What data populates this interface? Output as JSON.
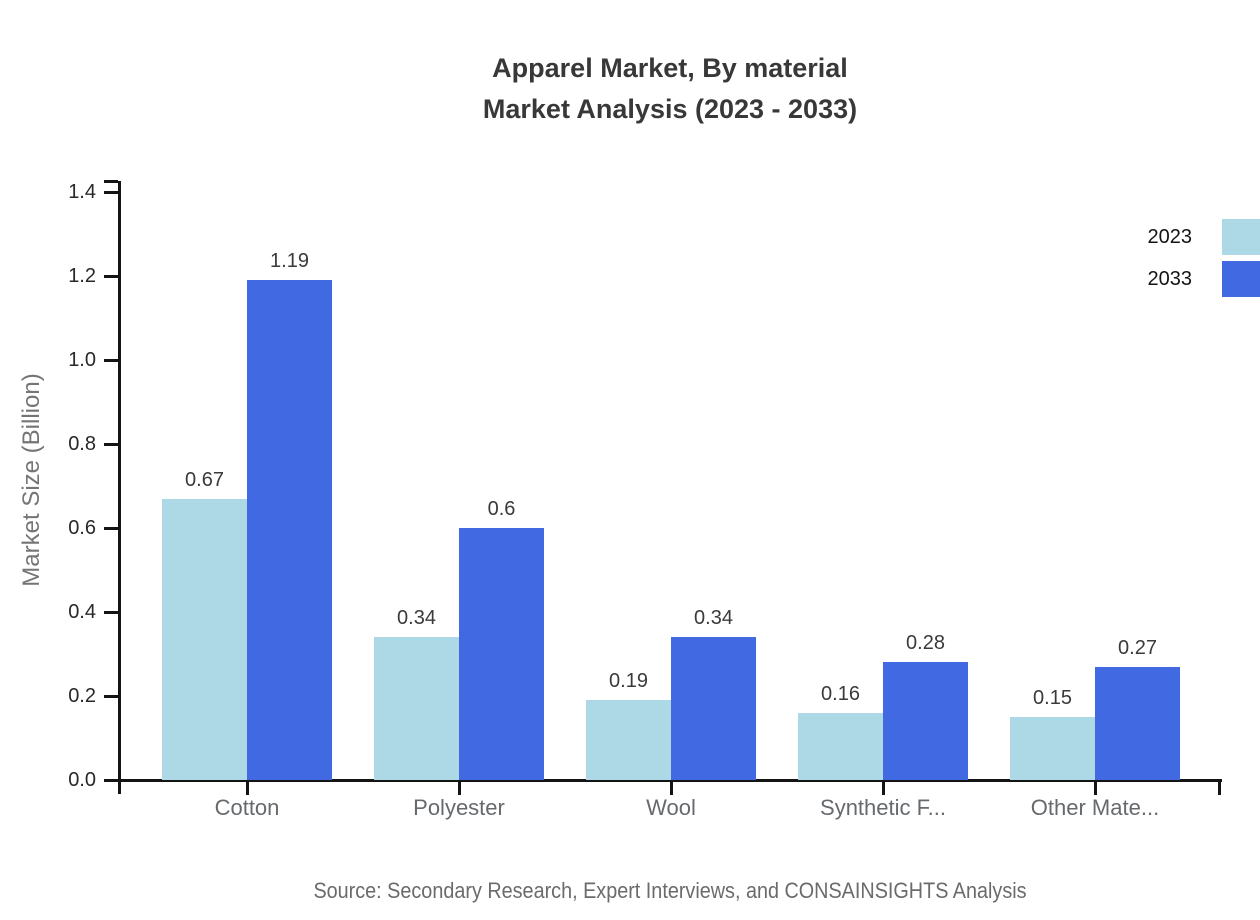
{
  "title": {
    "line1": "Apparel Market, By material",
    "line2": "Market Analysis (2023 - 2033)"
  },
  "source": "Source: Secondary Research, Expert Interviews, and CONSAINSIGHTS Analysis",
  "chart_data": {
    "type": "bar",
    "categories": [
      "Cotton",
      "Polyester",
      "Wool",
      "Synthetic F...",
      "Other Mate..."
    ],
    "series": [
      {
        "name": "2023",
        "color": "#ADD8E6",
        "values": [
          0.67,
          0.34,
          0.19,
          0.16,
          0.15
        ]
      },
      {
        "name": "2033",
        "color": "#4169E1",
        "values": [
          1.19,
          0.6,
          0.34,
          0.28,
          0.27
        ]
      }
    ],
    "title": "Apparel Market, By material Market Analysis (2023 - 2033)",
    "xlabel": "",
    "ylabel": "Market Size (Billion)",
    "ylim": [
      0,
      1.4
    ],
    "ytick_values": [
      0.0,
      0.2,
      0.4,
      0.6,
      0.8,
      1.0,
      1.2,
      1.4
    ],
    "ytick_labels": [
      "0.0",
      "0.2",
      "0.4",
      "0.6",
      "0.8",
      "1.0",
      "1.2",
      "1.4"
    ],
    "grid": false,
    "legend_position": "top-right",
    "value_labels": true,
    "axis_color": "#141414"
  }
}
